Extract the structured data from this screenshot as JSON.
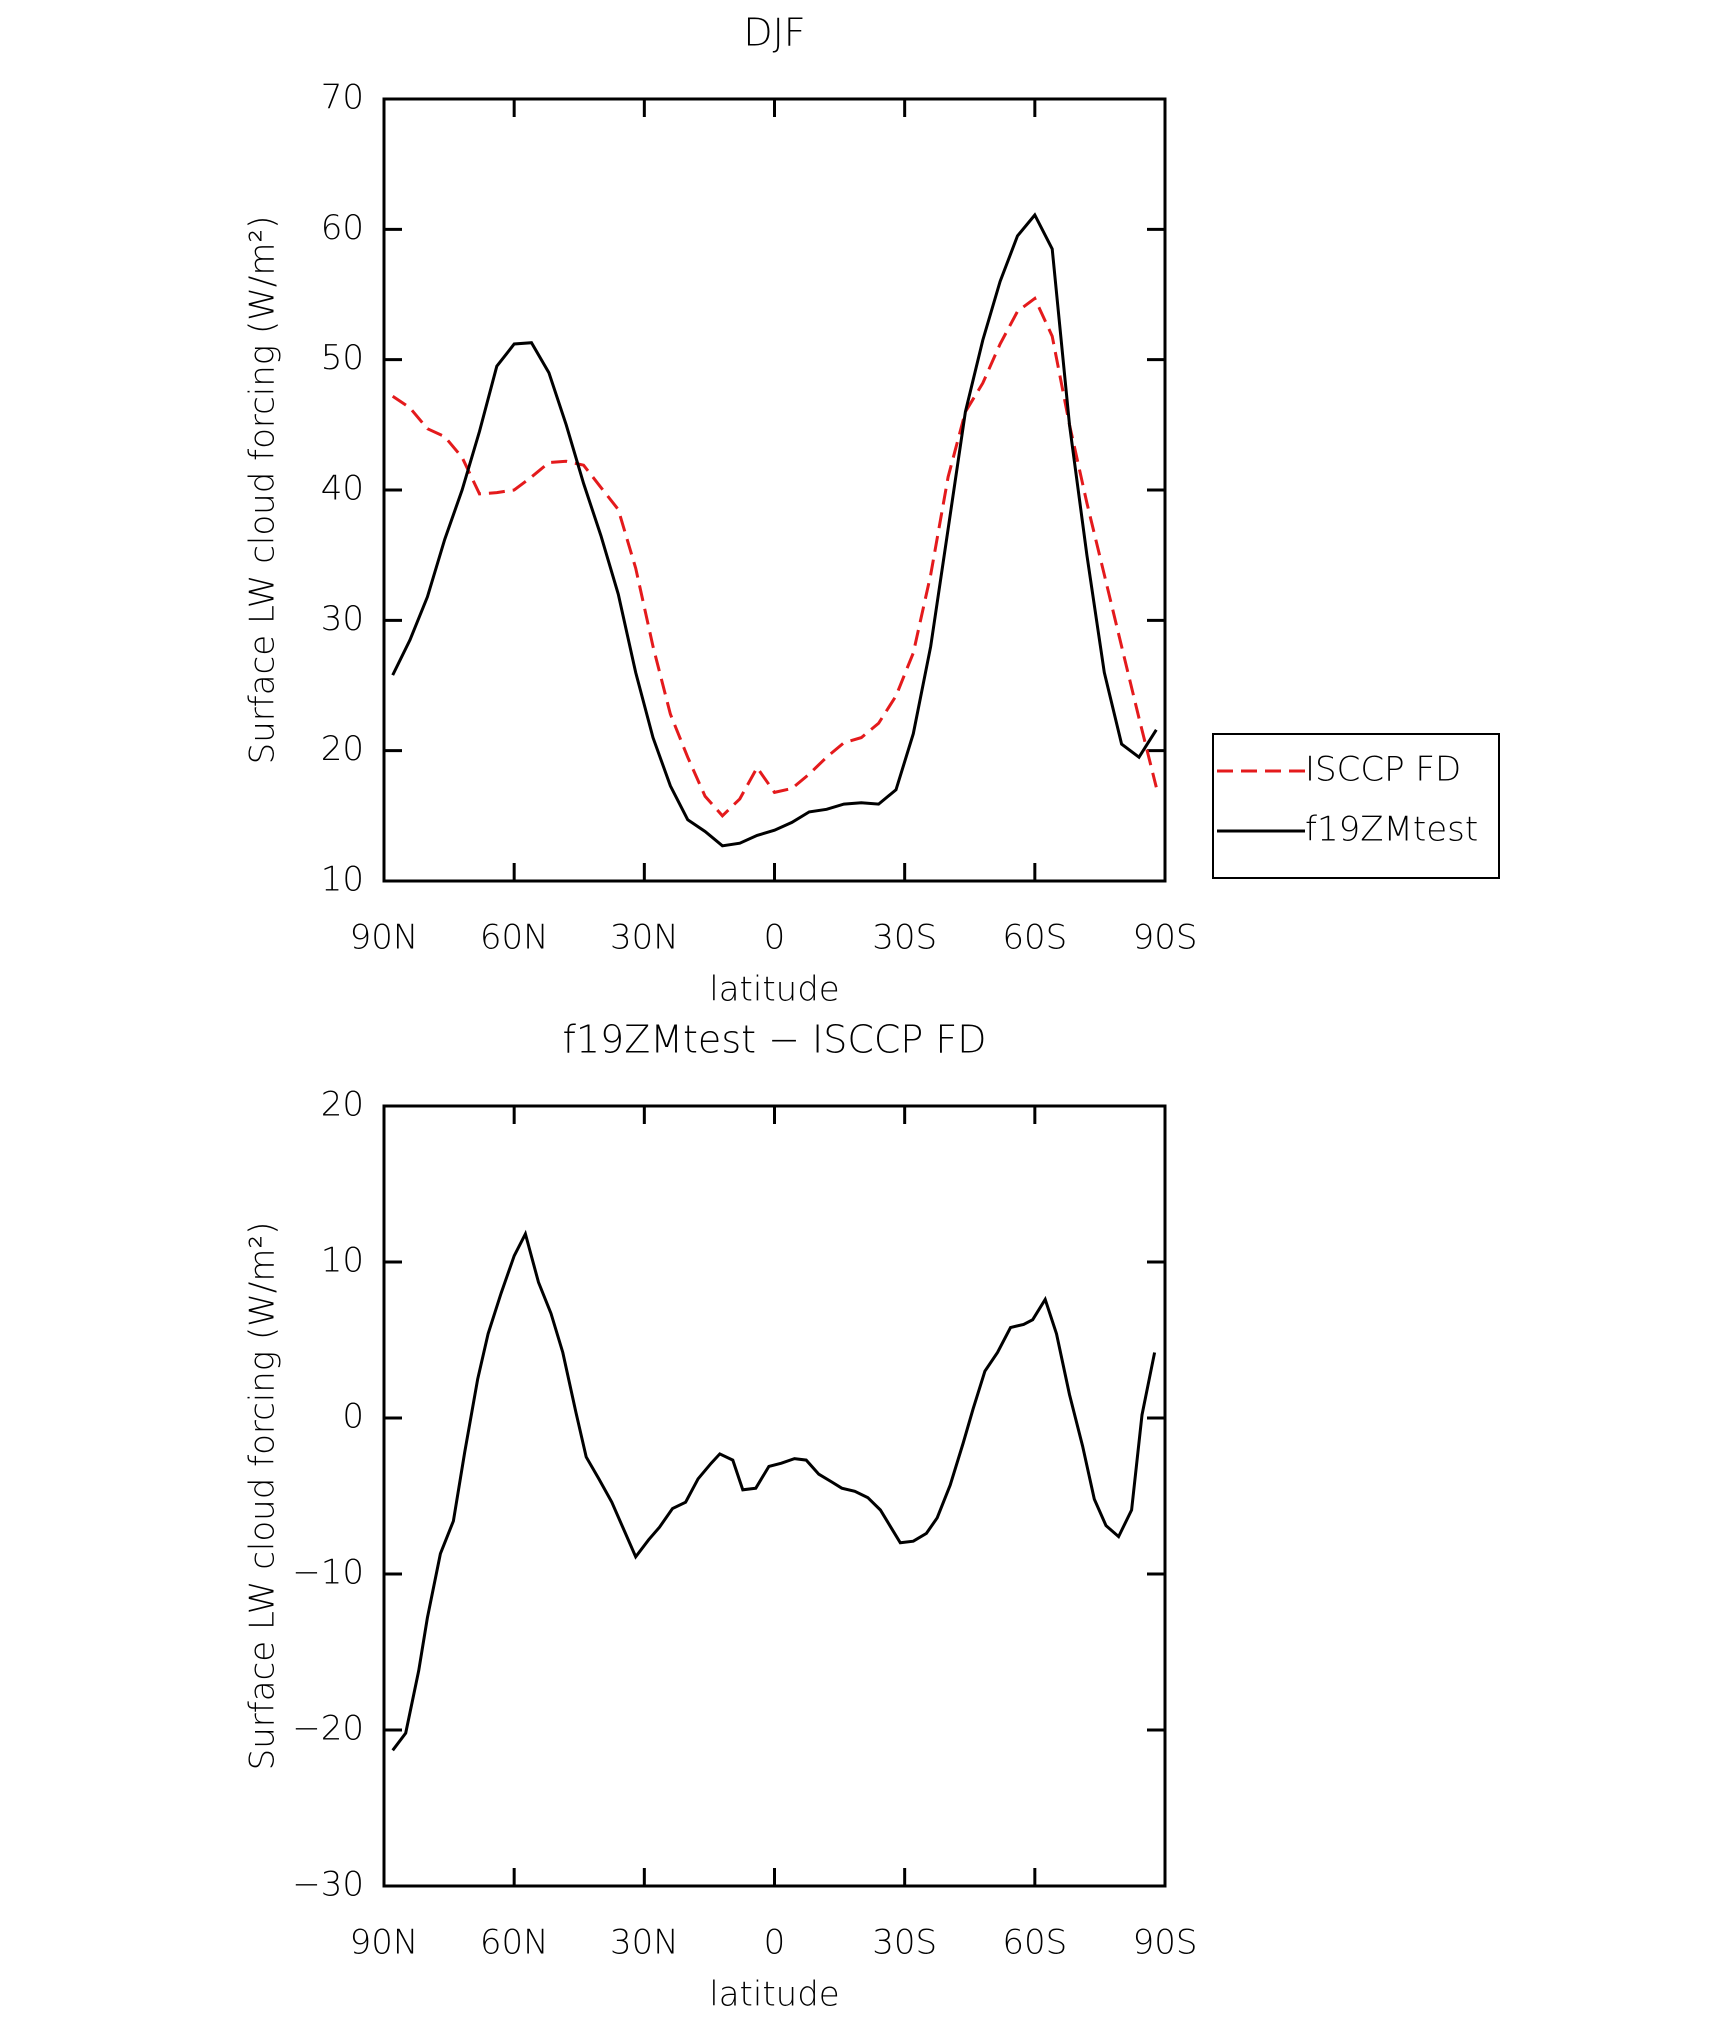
{
  "chart_data": [
    {
      "type": "line",
      "title": "DJF",
      "xlabel": "latitude",
      "ylabel": "Surface LW cloud forcing (W/m²)",
      "x": [
        88,
        84,
        80,
        76,
        72,
        68,
        64,
        60,
        56,
        52,
        48,
        44,
        40,
        36,
        32,
        28,
        24,
        20,
        16,
        12,
        8,
        4,
        0,
        -4,
        -8,
        -12,
        -16,
        -20,
        -24,
        -28,
        -32,
        -36,
        -40,
        -44,
        -48,
        -52,
        -56,
        -60,
        -64,
        -68,
        -72,
        -76,
        -80,
        -84,
        -88
      ],
      "series": [
        {
          "name": "ISCCP FD",
          "color": "#e41a1c",
          "dash": true,
          "values": [
            47.2,
            46.3,
            44.7,
            44.1,
            42.5,
            39.7,
            39.8,
            40,
            41,
            42.1,
            42.2,
            41.9,
            40.2,
            38.5,
            34,
            28,
            22.8,
            19.5,
            16.5,
            15,
            16.3,
            18.7,
            16.8,
            17.1,
            18.2,
            19.5,
            20.6,
            21,
            22.1,
            24.2,
            27.5,
            33.5,
            41,
            46,
            48.2,
            51.2,
            53.7,
            54.7,
            51.8,
            45,
            39,
            33.5,
            28,
            22.5,
            17.2
          ]
        },
        {
          "name": "f19ZMtest",
          "color": "#000000",
          "dash": false,
          "values": [
            25.8,
            28.5,
            31.8,
            36.2,
            40,
            44.5,
            49.5,
            51.2,
            51.3,
            49,
            45,
            40.5,
            36.5,
            32,
            26,
            21,
            17.3,
            14.7,
            13.8,
            12.7,
            12.9,
            13.5,
            13.9,
            14.5,
            15.3,
            15.5,
            15.9,
            16,
            15.9,
            17,
            21.3,
            28,
            37,
            46,
            51.5,
            56,
            59.5,
            61.1,
            58.5,
            45,
            35,
            26,
            20.5,
            19.5,
            21.6
          ]
        }
      ],
      "xlim": [
        90,
        -90
      ],
      "xticks": [
        {
          "value": 90,
          "label": "90N"
        },
        {
          "value": 60,
          "label": "60N"
        },
        {
          "value": 30,
          "label": "30N"
        },
        0,
        {
          "value": -30,
          "label": "30S"
        },
        {
          "value": -60,
          "label": "60S"
        },
        {
          "value": -90,
          "label": "90S"
        }
      ],
      "ylim": [
        10,
        70
      ],
      "yticks": [
        10,
        20,
        30,
        40,
        50,
        60,
        70
      ],
      "legend": "right"
    },
    {
      "type": "line",
      "title": "f19ZMtest − ISCCP FD",
      "xlabel": "latitude",
      "ylabel": "Surface LW cloud forcing (W/m²)",
      "x": [
        88,
        85,
        82,
        80,
        77,
        74,
        71.4,
        68.4,
        66,
        63,
        60,
        57.4,
        54.4,
        51.5,
        48.8,
        45.8,
        43.4,
        40.5,
        37.5,
        34.5,
        32,
        29,
        26.5,
        23.5,
        20.5,
        17.6,
        14.6,
        12.6,
        9.6,
        7.3,
        4.3,
        1.3,
        -1.6,
        -4.6,
        -7.3,
        -10.2,
        -13.2,
        -15.5,
        -18.5,
        -21.5,
        -24.4,
        -29,
        -32,
        -35,
        -37.5,
        -40.5,
        -43.5,
        -45.8,
        -48.5,
        -51.4,
        -54.4,
        -57.4,
        -59.5,
        -62.4,
        -65,
        -68,
        -71,
        -73.7,
        -76.4,
        -79.3,
        -82.3,
        -84.7,
        -87.6
      ],
      "values": [
        -21.3,
        -20.2,
        -16.2,
        -12.8,
        -8.7,
        -6.6,
        -2.2,
        2.5,
        5.4,
        8,
        10.4,
        11.8,
        8.7,
        6.7,
        4.2,
        0.4,
        -2.5,
        -3.9,
        -5.4,
        -7.3,
        -8.9,
        -7.8,
        -7,
        -5.8,
        -5.4,
        -3.9,
        -2.9,
        -2.3,
        -2.7,
        -4.6,
        -4.5,
        -3.1,
        -2.9,
        -2.6,
        -2.7,
        -3.6,
        -4.1,
        -4.5,
        -4.7,
        -5.1,
        -5.9,
        -8,
        -7.9,
        -7.4,
        -6.4,
        -4.3,
        -1.6,
        0.6,
        3,
        4.2,
        5.8,
        6,
        6.3,
        7.6,
        5.4,
        1.5,
        -1.8,
        -5.2,
        -6.9,
        -7.6,
        -5.9,
        0.2,
        4.2
      ],
      "color": "#000000",
      "xlim": [
        90,
        -90
      ],
      "xticks": [
        {
          "value": 90,
          "label": "90N"
        },
        {
          "value": 60,
          "label": "60N"
        },
        {
          "value": 30,
          "label": "30N"
        },
        0,
        {
          "value": -30,
          "label": "30S"
        },
        {
          "value": -60,
          "label": "60S"
        },
        {
          "value": -90,
          "label": "90S"
        }
      ],
      "ylim": [
        -30,
        20
      ],
      "yticks": [
        {
          "value": -30,
          "label": "−30"
        },
        {
          "value": -20,
          "label": "−20"
        },
        {
          "value": -10,
          "label": "−10"
        },
        0,
        10,
        20
      ]
    }
  ]
}
